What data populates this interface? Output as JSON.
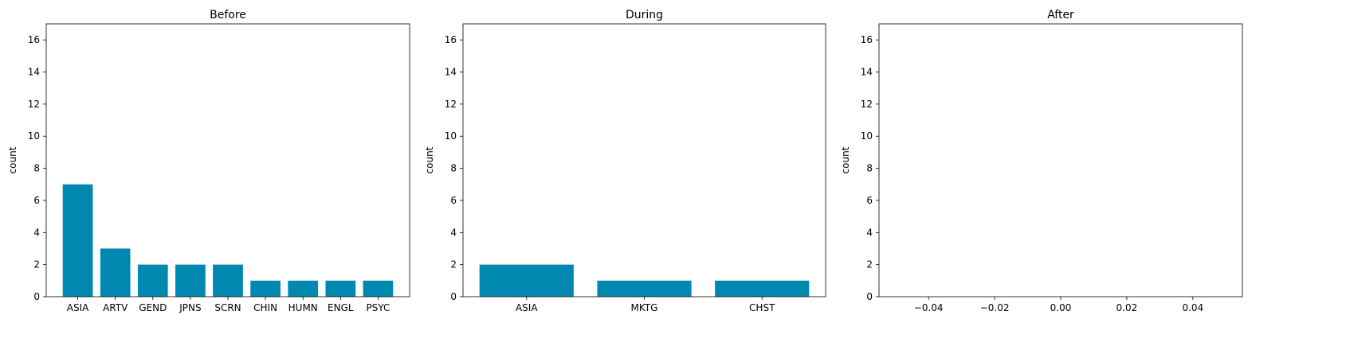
{
  "bar_color": "#0088b0",
  "chart_data": [
    {
      "type": "bar",
      "title": "Before",
      "ylabel": "count",
      "categories": [
        "ASIA",
        "ARTV",
        "GEND",
        "JPNS",
        "SCRN",
        "CHIN",
        "HUMN",
        "ENGL",
        "PSYC"
      ],
      "values": [
        7,
        3,
        2,
        2,
        2,
        1,
        1,
        1,
        1
      ],
      "ylim": [
        0,
        17
      ],
      "yticks": [
        "0",
        "2",
        "4",
        "6",
        "8",
        "10",
        "12",
        "14",
        "16"
      ],
      "grid": false
    },
    {
      "type": "bar",
      "title": "During",
      "ylabel": "count",
      "categories": [
        "ASIA",
        "MKTG",
        "CHST"
      ],
      "values": [
        2,
        1,
        1
      ],
      "ylim": [
        0,
        17
      ],
      "yticks": [
        "0",
        "2",
        "4",
        "6",
        "8",
        "10",
        "12",
        "14",
        "16"
      ],
      "grid": false
    },
    {
      "type": "bar",
      "title": "After",
      "ylabel": "count",
      "categories": [],
      "values": [],
      "xlim": [
        -0.055,
        0.055
      ],
      "xticks": [
        "−0.04",
        "−0.02",
        "0.00",
        "0.02",
        "0.04"
      ],
      "ylim": [
        0,
        17
      ],
      "yticks": [
        "0",
        "2",
        "4",
        "6",
        "8",
        "10",
        "12",
        "14",
        "16"
      ],
      "grid": false
    }
  ]
}
